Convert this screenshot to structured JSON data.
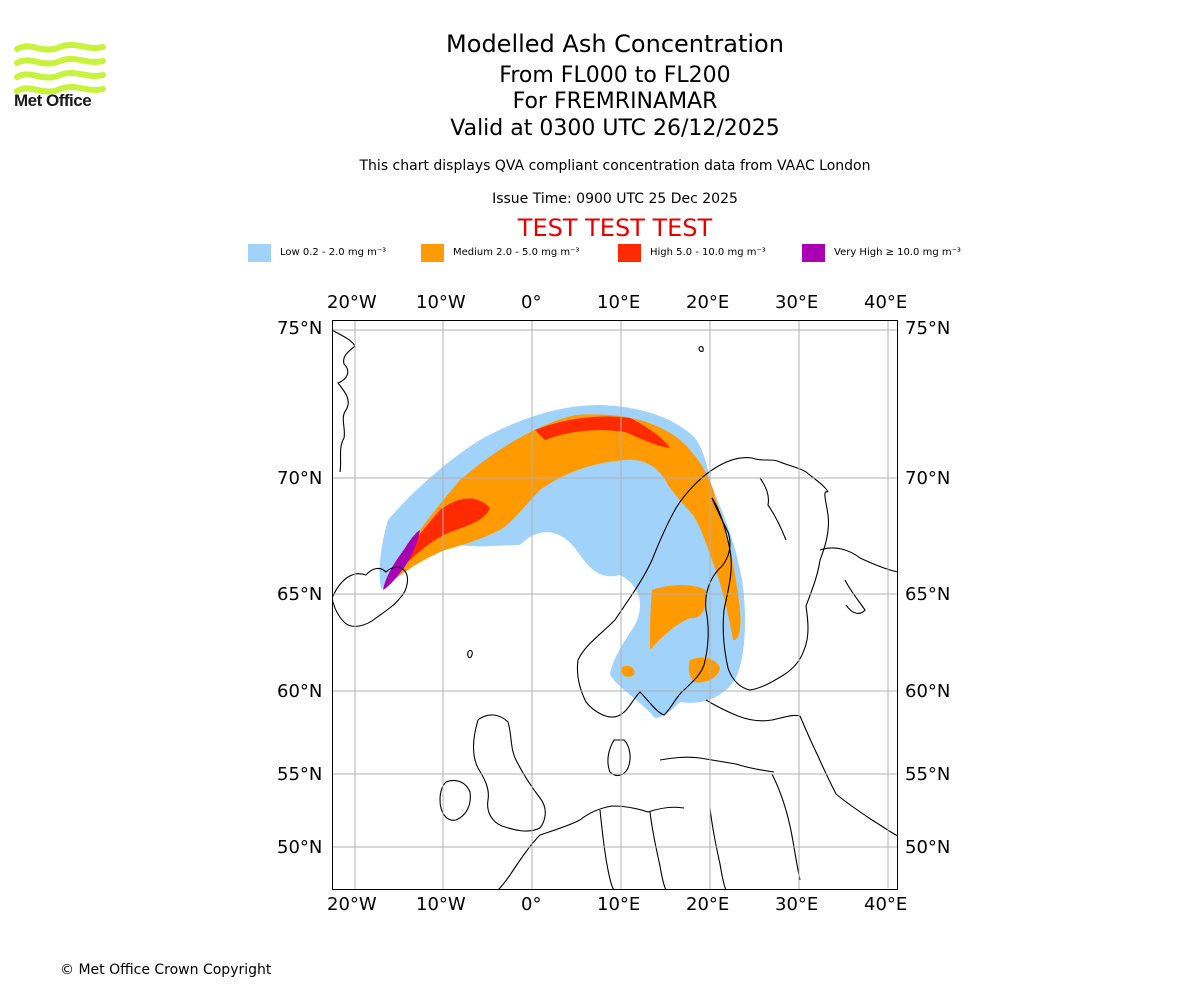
{
  "logo": {
    "text": "Met Office",
    "color": "#c8f23c"
  },
  "title": {
    "line1": "Modelled Ash Concentration",
    "line2": "From FL000 to FL200",
    "line3": "For FREMRINAMAR",
    "line4": "Valid at 0300 UTC 26/12/2025"
  },
  "subtitle": "This chart displays QVA compliant concentration data from VAAC London",
  "issue_time": "Issue Time: 0900 UTC 25 Dec 2025",
  "test_banner": "TEST TEST TEST",
  "legend": [
    {
      "label": "Low 0.2 - 2.0 mg m⁻³",
      "color": "#a0d2fa"
    },
    {
      "label": "Medium 2.0 - 5.0 mg m⁻³",
      "color": "#ff9a00"
    },
    {
      "label": "High 5.0 - 10.0 mg m⁻³",
      "color": "#ff2a00"
    },
    {
      "label": "Very High ≥ 10.0 mg m⁻³",
      "color": "#aa00b4"
    }
  ],
  "axes": {
    "lon_ticks": [
      "20°W",
      "10°W",
      "0°",
      "10°E",
      "20°E",
      "30°E",
      "40°E"
    ],
    "lat_ticks": [
      "75°N",
      "70°N",
      "65°N",
      "60°N",
      "55°N",
      "50°N"
    ]
  },
  "copyright": "© Met Office Crown Copyright"
}
